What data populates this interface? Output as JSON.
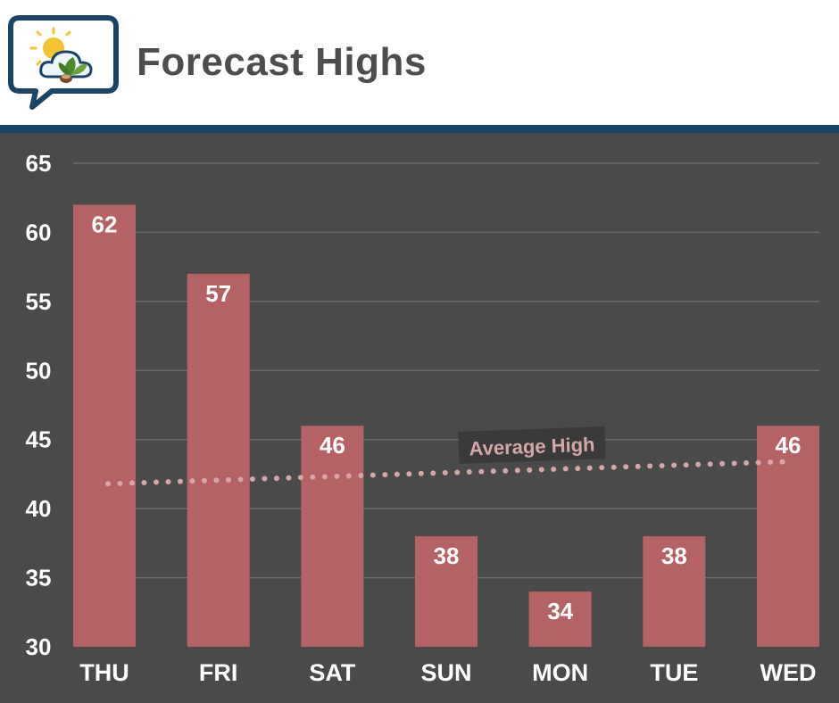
{
  "header": {
    "title": "Forecast Highs",
    "logo_icon": "weather-logo-sun-cloud-leaf-icon"
  },
  "colors": {
    "bar": "#b56264",
    "background": "#4a4a4a",
    "gridline": "#6b6b6b",
    "average_dots": "#d4a6a8",
    "divider": "#1a4466",
    "title": "#4d4d4d",
    "label_text": "#ffffff"
  },
  "chart_data": {
    "type": "bar",
    "categories": [
      "THU",
      "FRI",
      "SAT",
      "SUN",
      "MON",
      "TUE",
      "WED"
    ],
    "values": [
      62,
      57,
      46,
      38,
      34,
      38,
      46
    ],
    "data_labels": [
      "62",
      "57",
      "46",
      "38",
      "34",
      "38",
      "46"
    ],
    "y_ticks": [
      "30",
      "35",
      "40",
      "45",
      "50",
      "55",
      "60",
      "65"
    ],
    "ylim": [
      30,
      65
    ],
    "grid": true,
    "average_line": {
      "label": "Average High",
      "style": "dotted",
      "start_value": 41.8,
      "end_value": 43.4
    }
  }
}
